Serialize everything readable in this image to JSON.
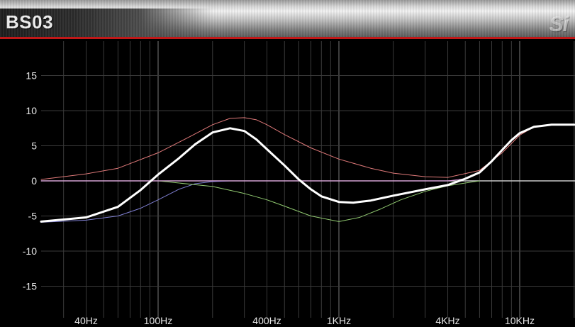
{
  "window": {
    "title": "BS03",
    "logo_text": "Si"
  },
  "colors": {
    "title_border": "#c01818",
    "grid": "#3a3a3a",
    "grid_major": "#7a7a7a",
    "zero_line": "#c9c9c9"
  },
  "chart_data": {
    "type": "line",
    "x_scale": "log",
    "xlim": [
      20,
      20000
    ],
    "ylim": [
      -20,
      20
    ],
    "grid": true,
    "y_ticks": [
      15,
      10,
      5,
      0,
      -5,
      -10,
      -15
    ],
    "y_tick_labels": [
      "15",
      "10",
      "5",
      "0",
      "-5",
      "-10",
      "-15"
    ],
    "x_ticks": [
      40,
      100,
      400,
      1000,
      4000,
      10000
    ],
    "x_tick_labels": [
      "40Hz",
      "100Hz",
      "400Hz",
      "1KHz",
      "4KHz",
      "10KHz"
    ],
    "series": [
      {
        "color": "#e07a7a",
        "stroke_width": 1,
        "x": [
          20,
          40,
          60,
          100,
          150,
          200,
          250,
          300,
          350,
          400,
          500,
          700,
          1000,
          1500,
          2000,
          3000,
          4000,
          6000,
          8000,
          10000,
          12000,
          15000,
          20000
        ],
        "y": [
          0.2,
          1.0,
          1.8,
          4.0,
          6.3,
          8.0,
          8.9,
          9.0,
          8.7,
          8.0,
          6.6,
          4.7,
          3.1,
          1.8,
          1.1,
          0.6,
          0.5,
          1.5,
          4.0,
          6.5,
          7.7,
          8.0,
          8.0
        ]
      },
      {
        "color": "#7f7fd2",
        "stroke_width": 1,
        "x": [
          20,
          40,
          60,
          80,
          100,
          130,
          160,
          200,
          250
        ],
        "y": [
          -5.9,
          -5.6,
          -5.0,
          -3.9,
          -2.7,
          -1.2,
          -0.4,
          -0.1,
          0.0
        ]
      },
      {
        "color": "#90c870",
        "stroke_width": 1,
        "x": [
          100,
          200,
          300,
          400,
          500,
          700,
          1000,
          1300,
          1700,
          2200,
          3000,
          4000,
          5000,
          6000
        ],
        "y": [
          0.0,
          -0.8,
          -1.8,
          -2.7,
          -3.6,
          -5.0,
          -5.8,
          -5.2,
          -4.0,
          -2.7,
          -1.5,
          -0.7,
          -0.3,
          0.0
        ]
      },
      {
        "color": "#d890d8",
        "stroke_width": 1,
        "x": [
          20,
          4000,
          5000,
          6000,
          7000,
          8000,
          9000,
          10000,
          12000,
          15000,
          20000
        ],
        "y": [
          0.0,
          0.0,
          0.3,
          1.2,
          2.8,
          4.4,
          5.8,
          6.8,
          7.7,
          8.0,
          8.0
        ]
      },
      {
        "color": "#ffffff",
        "stroke_width": 3,
        "x": [
          20,
          40,
          60,
          80,
          100,
          130,
          160,
          200,
          250,
          300,
          350,
          400,
          500,
          600,
          700,
          800,
          1000,
          1200,
          1500,
          2000,
          3000,
          4000,
          5000,
          6000,
          7000,
          8000,
          9000,
          10000,
          12000,
          15000,
          20000
        ],
        "y": [
          -5.8,
          -5.2,
          -3.7,
          -1.3,
          0.9,
          3.2,
          5.2,
          6.9,
          7.5,
          7.1,
          5.9,
          4.5,
          2.2,
          0.2,
          -1.2,
          -2.2,
          -3.0,
          -3.1,
          -2.8,
          -2.1,
          -1.2,
          -0.6,
          0.3,
          1.2,
          2.8,
          4.4,
          5.8,
          6.8,
          7.7,
          8.0,
          8.0
        ]
      }
    ]
  }
}
